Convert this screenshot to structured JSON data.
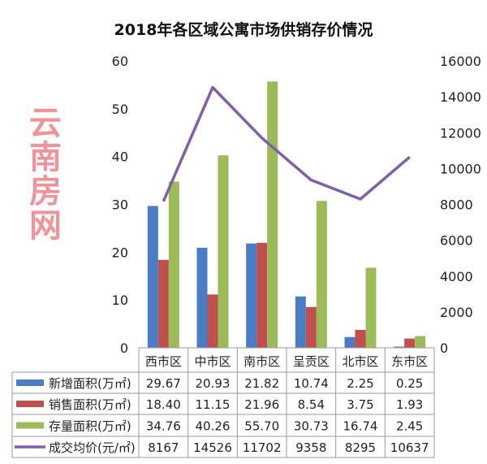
{
  "chart_data": {
    "type": "bar+line",
    "title": "2018年各区域公寓市场供销存价情况",
    "categories": [
      "西市区",
      "中市区",
      "南市区",
      "呈贡区",
      "北市区",
      "东市区"
    ],
    "series": [
      {
        "name": "新增面积(万㎡)",
        "type": "bar",
        "axis": "left",
        "color": "#4a7dc4",
        "values": [
          29.67,
          20.93,
          21.82,
          10.74,
          2.25,
          0.25
        ]
      },
      {
        "name": "销售面积(万㎡)",
        "type": "bar",
        "axis": "left",
        "color": "#c0504d",
        "values": [
          18.4,
          11.15,
          21.96,
          8.54,
          3.75,
          1.93
        ]
      },
      {
        "name": "存量面积(万㎡)",
        "type": "bar",
        "axis": "left",
        "color": "#9bbb59",
        "values": [
          34.76,
          40.26,
          55.7,
          30.73,
          16.74,
          2.45
        ]
      },
      {
        "name": "成交均价(元/㎡)",
        "type": "line",
        "axis": "right",
        "color": "#7f5fa8",
        "values": [
          8167,
          14526,
          11702,
          9358,
          8295,
          10637
        ]
      }
    ],
    "table_values": [
      [
        "29.67",
        "20.93",
        "21.82",
        "10.74",
        "2.25",
        "0.25"
      ],
      [
        "18.40",
        "11.15",
        "21.96",
        "8.54",
        "3.75",
        "1.93"
      ],
      [
        "34.76",
        "40.26",
        "55.70",
        "30.73",
        "16.74",
        "2.45"
      ],
      [
        "8167",
        "14526",
        "11702",
        "9358",
        "8295",
        "10637"
      ]
    ],
    "y_left": {
      "range": [
        0,
        60
      ],
      "ticks": [
        "0",
        "10",
        "20",
        "30",
        "40",
        "50",
        "60"
      ]
    },
    "y_right": {
      "range": [
        0,
        16000
      ],
      "ticks": [
        "0",
        "2000",
        "4000",
        "6000",
        "8000",
        "10000",
        "12000",
        "14000",
        "16000"
      ]
    },
    "grid": false,
    "legend": "data table below chart"
  },
  "watermark": "云南房网"
}
